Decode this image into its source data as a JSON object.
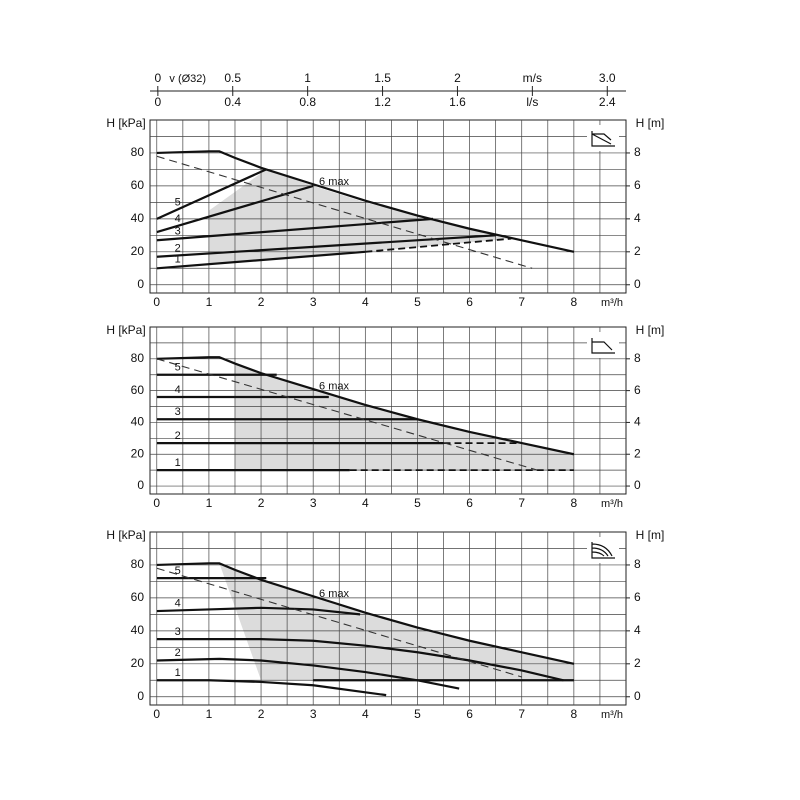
{
  "chart_data": [
    {
      "type": "line",
      "ylabel": "H [kPa]",
      "y2label": "H [m]",
      "xlabel": "m³/h",
      "xlim": [
        -0.13,
        9
      ],
      "xticks": [
        0,
        1,
        2,
        3,
        4,
        5,
        6,
        7,
        8
      ],
      "minor_xticks": [
        0.5,
        1.5,
        2.5,
        3.5,
        4.5,
        5.5,
        6.5,
        7.5,
        8.5
      ],
      "ylim": [
        -5,
        100
      ],
      "yticks": [
        0,
        20,
        40,
        60,
        80
      ],
      "minor_yticks": [
        10,
        30,
        50,
        70,
        90
      ],
      "y2lim": [
        -0.5,
        10
      ],
      "y2ticks": [
        0,
        2,
        4,
        6,
        8
      ],
      "grid": true,
      "top_axes": [
        {
          "label": "v (Ø32)",
          "xlim": [
            -0.052,
            3.125
          ],
          "xticks": [
            0,
            0.5,
            1,
            1.5,
            2,
            {
              "value": 2.5,
              "label": "m/s"
            },
            {
              "value": 3,
              "label": "3.0"
            }
          ]
        },
        {
          "xlim": [
            -0.042,
            2.5
          ],
          "xticks": [
            0,
            0.4,
            0.8,
            1.2,
            1.6,
            {
              "value": 2,
              "label": "l/s"
            },
            2.4
          ]
        }
      ],
      "area": {
        "color": "#dcdcdc",
        "x": [
          1,
          2.1,
          3,
          4,
          5,
          6,
          7,
          8,
          6.8,
          4,
          1
        ],
        "values": [
          45,
          70,
          60,
          50,
          42,
          34,
          27,
          20,
          28,
          20,
          13
        ]
      },
      "series": [
        {
          "name": "6 max",
          "color": "#111",
          "style": "solid",
          "x": [
            0,
            1,
            1.2,
            1.5,
            2,
            3,
            4,
            5,
            6,
            7,
            8
          ],
          "values": [
            80,
            81,
            81,
            77,
            71,
            61,
            51,
            42,
            34,
            27,
            20
          ]
        },
        {
          "name": "5",
          "color": "#111",
          "style": "solid",
          "x": [
            0,
            2.1
          ],
          "values": [
            40,
            70
          ]
        },
        {
          "name": "4",
          "color": "#111",
          "style": "solid",
          "x": [
            0,
            3
          ],
          "values": [
            32,
            60
          ]
        },
        {
          "name": "3",
          "color": "#111",
          "style": "solid",
          "x": [
            0,
            5.3
          ],
          "values": [
            27,
            40
          ]
        },
        {
          "name": "2",
          "color": "#111",
          "style": "solid",
          "x": [
            0,
            6.5
          ],
          "values": [
            17,
            30
          ]
        },
        {
          "name": "1",
          "color": "#111",
          "style": "solid",
          "x": [
            0,
            4
          ],
          "values": [
            10,
            20
          ]
        },
        {
          "color": "#111",
          "style": "dashed",
          "x": [
            4,
            6.8
          ],
          "values": [
            20,
            28
          ]
        },
        {
          "color": "#333",
          "style": "dashed-thin",
          "x": [
            0,
            7.2
          ],
          "values": [
            78,
            10
          ]
        }
      ]
    },
    {
      "type": "line",
      "ylabel": "H [kPa]",
      "y2label": "H [m]",
      "xlabel": "m³/h",
      "xlim": [
        -0.13,
        9
      ],
      "xticks": [
        0,
        1,
        2,
        3,
        4,
        5,
        6,
        7,
        8
      ],
      "minor_xticks": [
        0.5,
        1.5,
        2.5,
        3.5,
        4.5,
        5.5,
        6.5,
        7.5,
        8.5
      ],
      "ylim": [
        -5,
        100
      ],
      "yticks": [
        0,
        20,
        40,
        60,
        80
      ],
      "minor_yticks": [
        10,
        30,
        50,
        70,
        90
      ],
      "y2lim": [
        -0.5,
        10
      ],
      "y2ticks": [
        0,
        2,
        4,
        6,
        8
      ],
      "grid": true,
      "area": {
        "color": "#dcdcdc",
        "x": [
          1.5,
          2,
          3,
          4,
          5,
          6,
          7,
          8,
          8,
          1.5
        ],
        "values": [
          77,
          71,
          61,
          51,
          42,
          34,
          27,
          20,
          10,
          10
        ]
      },
      "series": [
        {
          "name": "6 max",
          "color": "#111",
          "style": "solid",
          "x": [
            0,
            1,
            1.2,
            1.5,
            2,
            3,
            4,
            5,
            6,
            7,
            8
          ],
          "values": [
            80,
            81,
            81,
            77,
            71,
            61,
            51,
            42,
            34,
            27,
            20
          ]
        },
        {
          "name": "5",
          "color": "#111",
          "style": "solid",
          "x": [
            0,
            2.3
          ],
          "values": [
            70,
            70
          ]
        },
        {
          "name": "4",
          "color": "#111",
          "style": "solid",
          "x": [
            0,
            3.3
          ],
          "values": [
            56,
            56
          ]
        },
        {
          "name": "3",
          "color": "#111",
          "style": "solid",
          "x": [
            0,
            5
          ],
          "values": [
            42,
            42
          ]
        },
        {
          "name": "2",
          "color": "#111",
          "style": "solid",
          "x": [
            0,
            5.5
          ],
          "values": [
            27,
            27
          ]
        },
        {
          "name": "1",
          "color": "#111",
          "style": "solid",
          "x": [
            0,
            3.7
          ],
          "values": [
            10,
            10
          ]
        },
        {
          "color": "#111",
          "style": "dashed",
          "x": [
            5.5,
            7
          ],
          "values": [
            27,
            27
          ]
        },
        {
          "color": "#111",
          "style": "dashed",
          "x": [
            3.7,
            8
          ],
          "values": [
            10,
            10
          ]
        },
        {
          "color": "#333",
          "style": "dashed-thin",
          "x": [
            0,
            7.3
          ],
          "values": [
            80,
            10
          ]
        }
      ]
    },
    {
      "type": "line",
      "ylabel": "H [kPa]",
      "y2label": "H [m]",
      "xlabel": "m³/h",
      "xlim": [
        -0.13,
        9
      ],
      "xticks": [
        0,
        1,
        2,
        3,
        4,
        5,
        6,
        7,
        8
      ],
      "minor_xticks": [
        0.5,
        1.5,
        2.5,
        3.5,
        4.5,
        5.5,
        6.5,
        7.5,
        8.5
      ],
      "ylim": [
        -5,
        100
      ],
      "yticks": [
        0,
        20,
        40,
        60,
        80
      ],
      "minor_yticks": [
        10,
        30,
        50,
        70,
        90
      ],
      "y2lim": [
        -0.5,
        10
      ],
      "y2ticks": [
        0,
        2,
        4,
        6,
        8
      ],
      "grid": true,
      "area": {
        "color": "#dcdcdc",
        "x": [
          1.2,
          2,
          3,
          4,
          5,
          6,
          7,
          8,
          8,
          2
        ],
        "values": [
          81,
          71,
          61,
          51,
          42,
          34,
          27,
          20,
          10,
          10
        ]
      },
      "series": [
        {
          "name": "6 max",
          "color": "#111",
          "style": "solid",
          "x": [
            0,
            1,
            1.2,
            1.5,
            2,
            3,
            4,
            5,
            6,
            7,
            8
          ],
          "values": [
            80,
            81,
            81,
            77,
            71,
            61,
            51,
            42,
            34,
            27,
            20
          ]
        },
        {
          "name": "5",
          "color": "#111",
          "style": "solid",
          "x": [
            0,
            2.1
          ],
          "values": [
            72,
            72
          ]
        },
        {
          "name": "4",
          "color": "#111",
          "style": "solid",
          "x": [
            0,
            1,
            2,
            3,
            3.9
          ],
          "values": [
            52,
            53,
            54,
            53,
            50
          ]
        },
        {
          "name": "3",
          "color": "#111",
          "style": "solid",
          "x": [
            0,
            1,
            2,
            3,
            4,
            5,
            6,
            7,
            7.8
          ],
          "values": [
            35,
            35,
            35,
            34,
            31,
            27,
            22,
            16,
            10
          ]
        },
        {
          "name": "2",
          "color": "#111",
          "style": "solid",
          "x": [
            0,
            1.2,
            2,
            3,
            4,
            5,
            5.8
          ],
          "values": [
            22,
            23,
            22,
            19,
            15,
            10,
            5
          ]
        },
        {
          "name": "1",
          "color": "#111",
          "style": "solid",
          "x": [
            0,
            1,
            2,
            3,
            4.4
          ],
          "values": [
            10,
            10,
            9,
            7,
            1
          ]
        },
        {
          "color": "#111",
          "style": "solid",
          "x": [
            3,
            8
          ],
          "values": [
            10,
            10
          ]
        },
        {
          "color": "#333",
          "style": "dashed-thin",
          "x": [
            0,
            7
          ],
          "values": [
            78,
            12
          ]
        }
      ]
    }
  ]
}
